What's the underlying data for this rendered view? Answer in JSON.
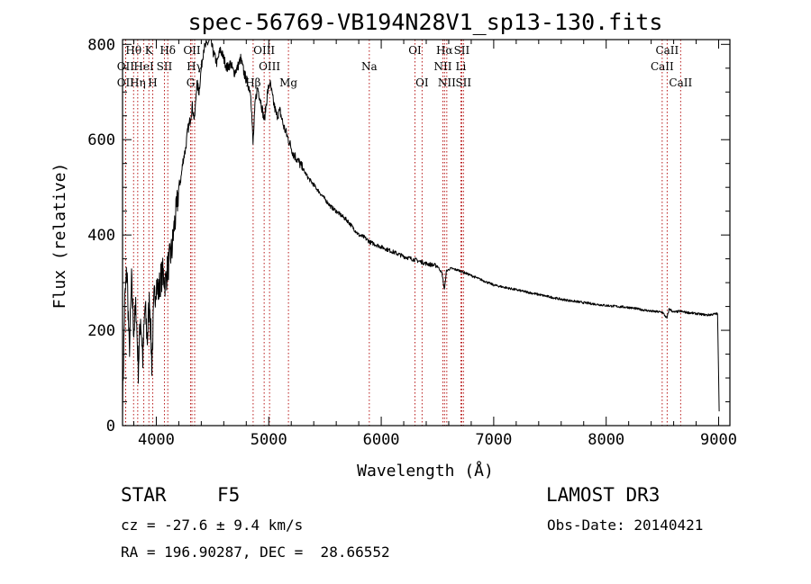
{
  "chart_data": {
    "type": "line",
    "title": "spec-56769-VB194N28V1_sp13-130.fits",
    "xlabel": "Wavelength (Å)",
    "ylabel": "Flux (relative)",
    "xlim": [
      3700,
      9100
    ],
    "ylim": [
      0,
      810
    ],
    "xticks": [
      4000,
      5000,
      6000,
      7000,
      8000,
      9000
    ],
    "xtick_labels": [
      "4000",
      "5000",
      "6000",
      "7000",
      "8000",
      "9000"
    ],
    "yticks": [
      0,
      200,
      400,
      600,
      800
    ],
    "ytick_labels": [
      "0",
      "200",
      "400",
      "600",
      "800"
    ],
    "series": [
      {
        "name": "spectrum",
        "x": [
          3700,
          3720,
          3740,
          3760,
          3780,
          3800,
          3820,
          3840,
          3860,
          3880,
          3900,
          3920,
          3940,
          3960,
          3980,
          4000,
          4020,
          4040,
          4060,
          4080,
          4100,
          4120,
          4140,
          4160,
          4180,
          4200,
          4220,
          4240,
          4260,
          4280,
          4300,
          4320,
          4340,
          4360,
          4380,
          4400,
          4420,
          4450,
          4480,
          4510,
          4540,
          4570,
          4600,
          4630,
          4660,
          4690,
          4720,
          4750,
          4780,
          4810,
          4840,
          4860,
          4880,
          4900,
          4930,
          4960,
          4990,
          5010,
          5040,
          5070,
          5100,
          5130,
          5160,
          5190,
          5220,
          5250,
          5300,
          5350,
          5400,
          5450,
          5500,
          5550,
          5600,
          5650,
          5700,
          5750,
          5800,
          5850,
          5900,
          5950,
          6000,
          6100,
          6200,
          6300,
          6400,
          6500,
          6540,
          6562,
          6580,
          6620,
          6700,
          6800,
          6900,
          7000,
          7200,
          7400,
          7600,
          7800,
          8000,
          8200,
          8400,
          8500,
          8540,
          8560,
          8600,
          8660,
          8700,
          8800,
          8900,
          8990,
          9000,
          9005
        ],
        "y": [
          50,
          260,
          330,
          150,
          300,
          200,
          250,
          120,
          230,
          140,
          250,
          180,
          270,
          130,
          260,
          300,
          280,
          310,
          320,
          300,
          330,
          350,
          370,
          420,
          450,
          500,
          520,
          560,
          580,
          620,
          640,
          670,
          640,
          720,
          700,
          750,
          790,
          800,
          810,
          780,
          760,
          790,
          770,
          750,
          760,
          740,
          750,
          770,
          740,
          720,
          700,
          590,
          680,
          710,
          680,
          640,
          700,
          720,
          680,
          650,
          660,
          630,
          610,
          590,
          570,
          560,
          540,
          520,
          505,
          490,
          475,
          460,
          450,
          440,
          430,
          415,
          400,
          395,
          385,
          380,
          375,
          365,
          355,
          348,
          340,
          335,
          320,
          285,
          325,
          330,
          325,
          315,
          305,
          295,
          285,
          275,
          265,
          258,
          252,
          248,
          240,
          238,
          225,
          245,
          238,
          240,
          238,
          235,
          232,
          235,
          100,
          30
        ]
      }
    ],
    "lines": [
      {
        "label": "Hθ",
        "x": 3798,
        "row": 0
      },
      {
        "label": "OII",
        "x": 3727,
        "row": 1
      },
      {
        "label": "OII",
        "x": 3727,
        "row": 2
      },
      {
        "label": "K",
        "x": 3934,
        "row": 0
      },
      {
        "label": "H",
        "x": 3968,
        "row": 2
      },
      {
        "label": "Hη",
        "x": 3835,
        "row": 2
      },
      {
        "label": "HeI",
        "x": 3889,
        "row": 1
      },
      {
        "label": "SII",
        "x": 4072,
        "row": 1
      },
      {
        "label": "Hδ",
        "x": 4102,
        "row": 0
      },
      {
        "label": "OII",
        "x": 4317,
        "row": 0
      },
      {
        "label": "Hγ",
        "x": 4341,
        "row": 1
      },
      {
        "label": "G",
        "x": 4305,
        "row": 2
      },
      {
        "label": "Hβ",
        "x": 4861,
        "row": 2
      },
      {
        "label": "OIII",
        "x": 4959,
        "row": 0
      },
      {
        "label": "OIII",
        "x": 5007,
        "row": 1
      },
      {
        "label": "Mg",
        "x": 5175,
        "row": 2
      },
      {
        "label": "Na",
        "x": 5894,
        "row": 1
      },
      {
        "label": "OI",
        "x": 6300,
        "row": 0
      },
      {
        "label": "OI",
        "x": 6363,
        "row": 2
      },
      {
        "label": "NII",
        "x": 6548,
        "row": 1
      },
      {
        "label": "Hα",
        "x": 6563,
        "row": 0
      },
      {
        "label": "NII",
        "x": 6583,
        "row": 2
      },
      {
        "label": "Li",
        "x": 6708,
        "row": 1
      },
      {
        "label": "SII",
        "x": 6716,
        "row": 0
      },
      {
        "label": "SII",
        "x": 6731,
        "row": 2
      },
      {
        "label": "CaII",
        "x": 8498,
        "row": 1
      },
      {
        "label": "CaII",
        "x": 8542,
        "row": 0
      },
      {
        "label": "CaII",
        "x": 8662,
        "row": 2
      }
    ]
  },
  "info": {
    "class": "STAR",
    "subclass": "F5",
    "survey": "LAMOST DR3",
    "cz": "cz = -27.6 ± 9.4 km/s",
    "obs_date": "Obs-Date: 20140421",
    "coords": "RA = 196.90287, DEC =  28.66552"
  }
}
